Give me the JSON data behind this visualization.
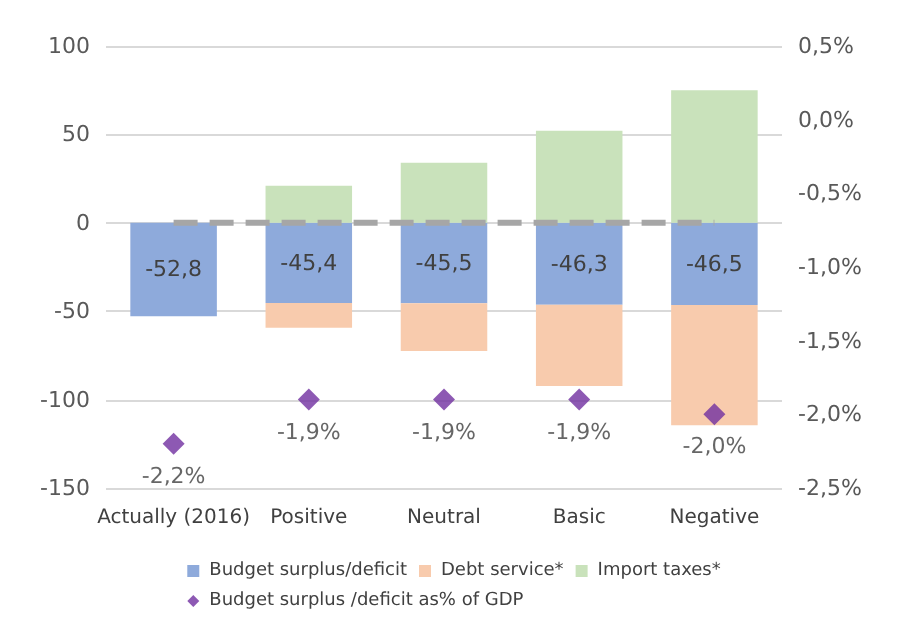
{
  "chart_data": {
    "type": "bar",
    "stacked": true,
    "categories": [
      "Actually (2016)",
      "Positive",
      "Neutral",
      "Basic",
      "Negative"
    ],
    "series": [
      {
        "name": "Budget surplus/deficit",
        "color": "#8eaadb",
        "values": [
          -52.8,
          -45.4,
          -45.5,
          -46.3,
          -46.5
        ],
        "value_labels": [
          "-52,8",
          "-45,4",
          "-45,5",
          "-46,3",
          "-46,5"
        ]
      },
      {
        "name": "Debt service*",
        "color": "#f8cbad",
        "values": [
          null,
          -14,
          -27,
          -46,
          -68
        ]
      },
      {
        "name": "Import taxes*",
        "color": "#c9e2bb",
        "values": [
          null,
          21,
          34,
          52,
          75
        ]
      },
      {
        "name": "Budget surplus /deficit as% of GDP",
        "type": "scatter",
        "axis": "y2",
        "marker": "diamond",
        "color": "#7030a0",
        "values": [
          -2.2,
          -1.9,
          -1.9,
          -1.9,
          -2.0
        ],
        "value_labels": [
          "-2,2%",
          "-1,9%",
          "-1,9%",
          "-1,9%",
          "-2,0%"
        ]
      },
      {
        "type": "line",
        "color": "#a6a6a6",
        "line_style": "dashed",
        "marker": "none",
        "values": [
          0,
          0,
          0,
          0,
          0
        ]
      }
    ],
    "ylim": [
      -150,
      100
    ],
    "yticks": [
      -150,
      -100,
      -50,
      0,
      50,
      100
    ],
    "y2lim": [
      -2.5,
      0.5
    ],
    "y2ticks": [
      {
        "value": -2.5,
        "label": "-2,5%"
      },
      {
        "value": -2.0,
        "label": "-2,0%"
      },
      {
        "value": -1.5,
        "label": "-1,5%"
      },
      {
        "value": -1.0,
        "label": "-1,0%"
      },
      {
        "value": -0.5,
        "label": "-0,5%"
      },
      {
        "value": 0,
        "label": "0,0%"
      },
      {
        "value": 0.5,
        "label": "0,5%"
      }
    ],
    "grid": "y",
    "legend": "bottom"
  }
}
